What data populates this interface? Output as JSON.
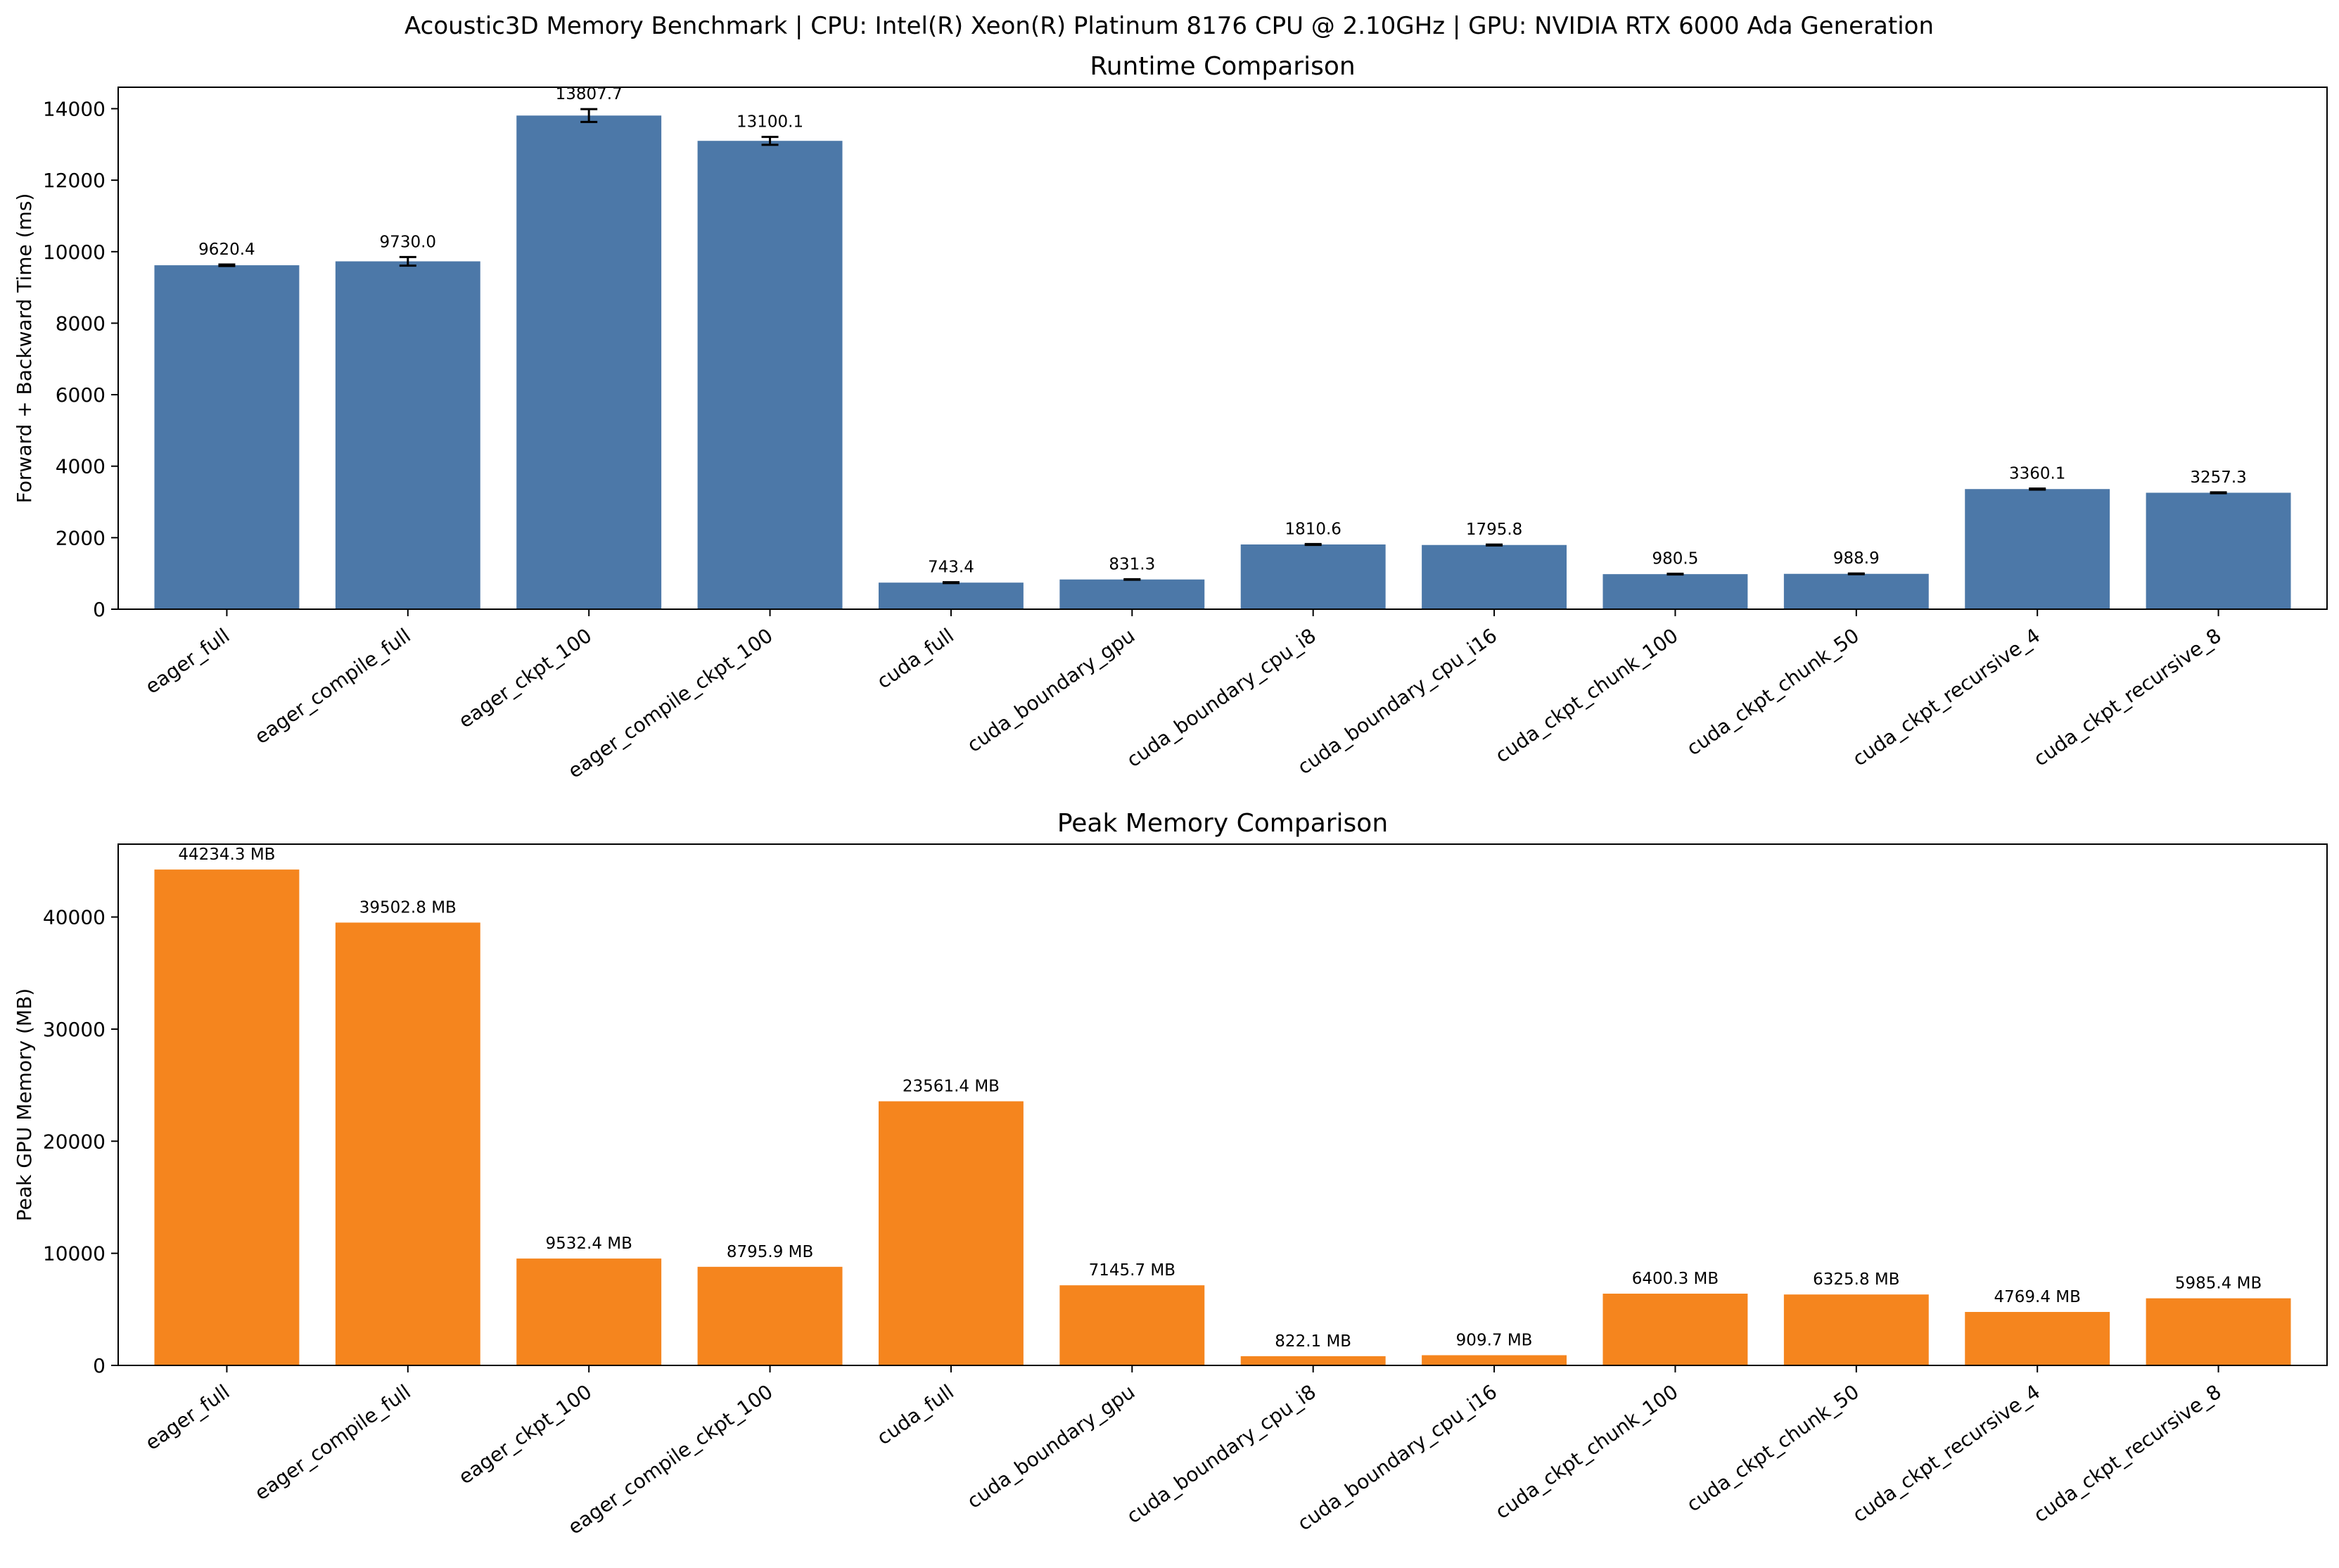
{
  "suptitle": "Acoustic3D Memory Benchmark | CPU: Intel(R) Xeon(R) Platinum 8176 CPU @ 2.10GHz | GPU: NVIDIA RTX 6000 Ada Generation",
  "chart_data": [
    {
      "type": "bar",
      "title": "Runtime Comparison",
      "xlabel": "",
      "ylabel": "Forward + Backward Time (ms)",
      "ylim": [
        0,
        14600
      ],
      "yticks": [
        0,
        2000,
        4000,
        6000,
        8000,
        10000,
        12000,
        14000
      ],
      "color": "#4c78a8",
      "categories": [
        "eager_full",
        "eager_compile_full",
        "eager_ckpt_100",
        "eager_compile_ckpt_100",
        "cuda_full",
        "cuda_boundary_gpu",
        "cuda_boundary_cpu_i8",
        "cuda_boundary_cpu_i16",
        "cuda_ckpt_chunk_100",
        "cuda_ckpt_chunk_50",
        "cuda_ckpt_recursive_4",
        "cuda_ckpt_recursive_8"
      ],
      "values": [
        9620.4,
        9730.0,
        13807.7,
        13100.1,
        743.4,
        831.3,
        1810.6,
        1795.8,
        980.5,
        988.9,
        3360.1,
        3257.3
      ],
      "errors": [
        20,
        120,
        180,
        110,
        12,
        8,
        12,
        12,
        10,
        10,
        15,
        12
      ],
      "labels": [
        "9620.4",
        "9730.0",
        "13807.7",
        "13100.1",
        "743.4",
        "831.3",
        "1810.6",
        "1795.8",
        "980.5",
        "988.9",
        "3360.1",
        "3257.3"
      ],
      "legend": "none",
      "grid": false
    },
    {
      "type": "bar",
      "title": "Peak Memory Comparison",
      "xlabel": "",
      "ylabel": "Peak GPU Memory (MB)",
      "ylim": [
        0,
        46500
      ],
      "yticks": [
        0,
        10000,
        20000,
        30000,
        40000
      ],
      "color": "#f5851e",
      "categories": [
        "eager_full",
        "eager_compile_full",
        "eager_ckpt_100",
        "eager_compile_ckpt_100",
        "cuda_full",
        "cuda_boundary_gpu",
        "cuda_boundary_cpu_i8",
        "cuda_boundary_cpu_i16",
        "cuda_ckpt_chunk_100",
        "cuda_ckpt_chunk_50",
        "cuda_ckpt_recursive_4",
        "cuda_ckpt_recursive_8"
      ],
      "values": [
        44234.3,
        39502.8,
        9532.4,
        8795.9,
        23561.4,
        7145.7,
        822.1,
        909.7,
        6400.3,
        6325.8,
        4769.4,
        5985.4
      ],
      "labels": [
        "44234.3 MB",
        "39502.8 MB",
        "9532.4 MB",
        "8795.9 MB",
        "23561.4 MB",
        "7145.7 MB",
        "822.1 MB",
        "909.7 MB",
        "6400.3 MB",
        "6325.8 MB",
        "4769.4 MB",
        "5985.4 MB"
      ],
      "legend": "none",
      "grid": false
    }
  ]
}
